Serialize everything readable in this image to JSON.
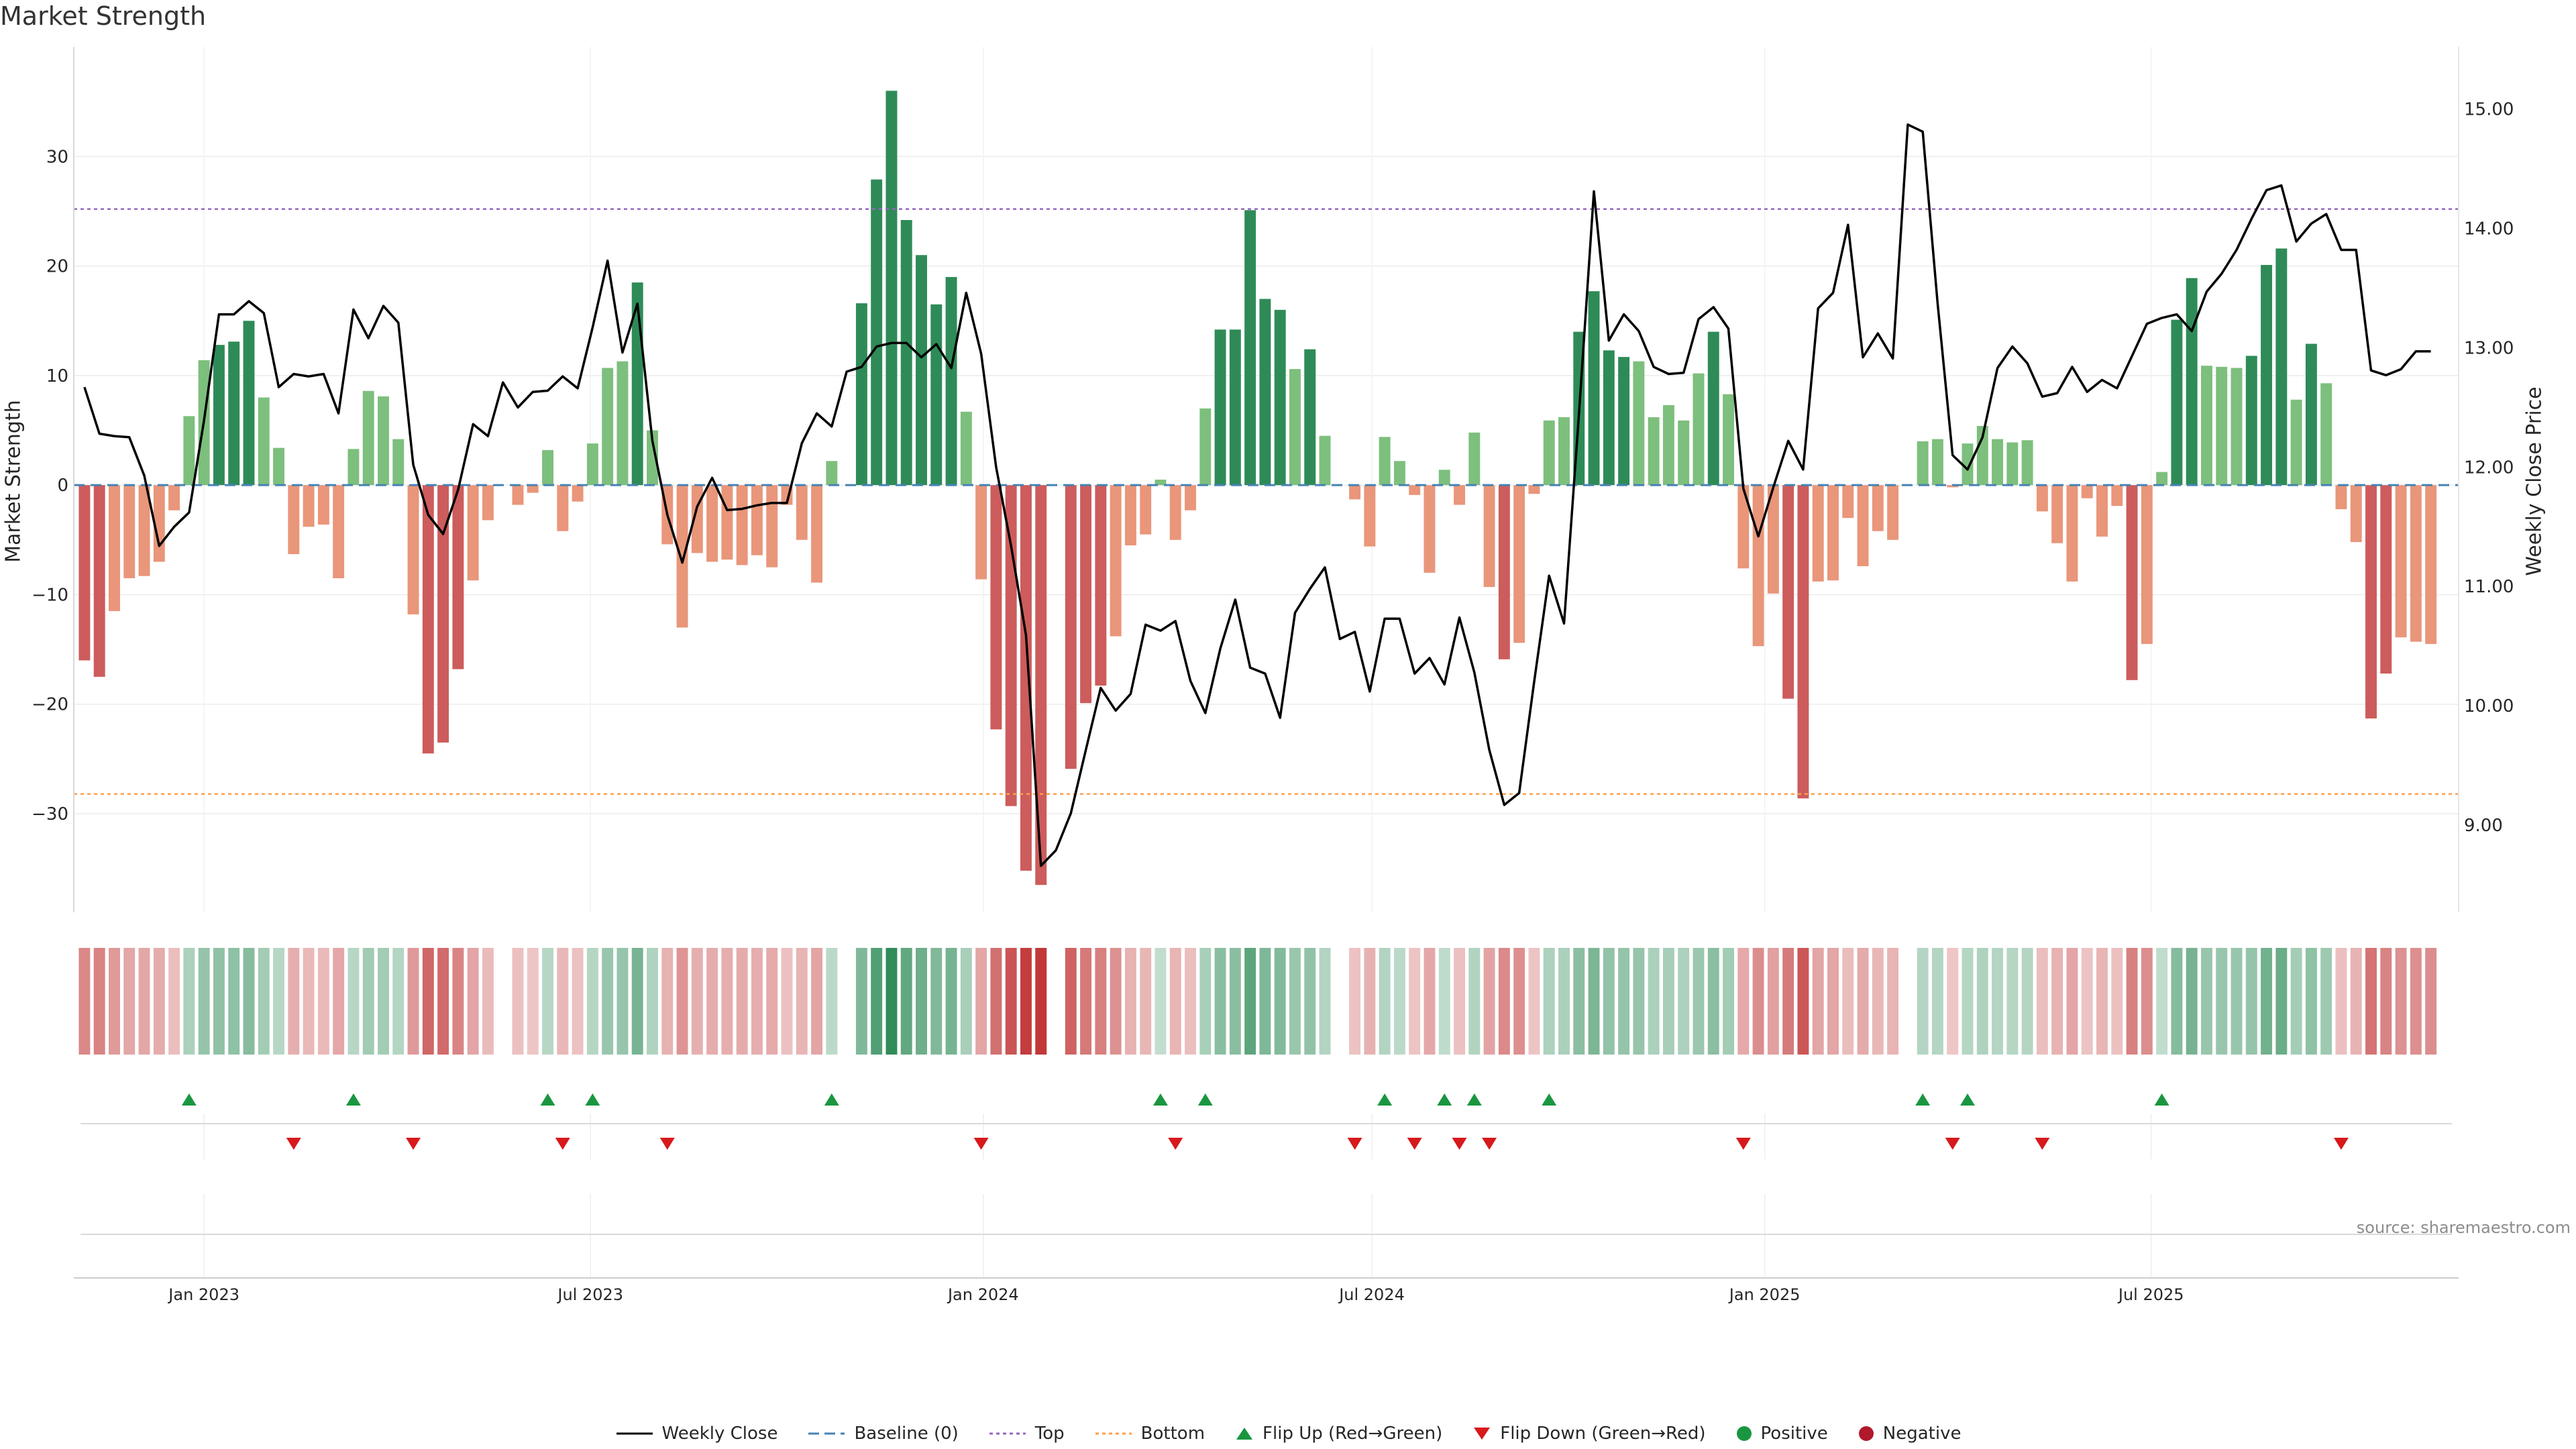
{
  "title": "Market Strength",
  "source": "source: sharemaestro.com",
  "colors": {
    "strong_green": "#2e8b57",
    "light_green": "#7dbf7d",
    "strong_red": "#cd5c5c",
    "light_red": "#e9967a",
    "price_line": "#000000",
    "baseline": "#4682b4",
    "top_line": "#9467bd",
    "bottom_line": "#ff9f4a",
    "flip_up": "#1a9641",
    "flip_down": "#d7191c"
  },
  "legend": [
    {
      "label": "Weekly Close",
      "icon": "solid-line-icon"
    },
    {
      "label": "Baseline (0)",
      "icon": "dashed-line-icon"
    },
    {
      "label": "Top",
      "icon": "dotted-line-icon"
    },
    {
      "label": "Bottom",
      "icon": "dotted-line-icon"
    },
    {
      "label": "Flip Up (Red→Green)",
      "icon": "triangle-up-icon"
    },
    {
      "label": "Flip Down (Green→Red)",
      "icon": "triangle-down-icon"
    },
    {
      "label": "Positive",
      "icon": "circle-icon"
    },
    {
      "label": "Negative",
      "icon": "circle-icon"
    }
  ],
  "chart_data": {
    "type": "bar",
    "title": "Market Strength",
    "ylabel": "Market Strength",
    "y2label": "Weekly Close Price",
    "ylim": [
      -39,
      40
    ],
    "y2lim": [
      8.27,
      15.52
    ],
    "yticks": [
      -30,
      -20,
      -10,
      0,
      10,
      20,
      30
    ],
    "yticklabels": [
      "−30",
      "−20",
      "−10",
      "0",
      "10",
      "20",
      "30"
    ],
    "y2ticks": [
      9,
      10,
      11,
      12,
      13,
      14,
      15
    ],
    "y2ticklabels": [
      "9.00",
      "10.00",
      "11.00",
      "12.00",
      "13.00",
      "14.00",
      "15.00"
    ],
    "xlim": [
      "2022-11-01",
      "2025-11-22"
    ],
    "xticks": [
      "2023-01-01",
      "2023-07-01",
      "2024-01-01",
      "2024-07-01",
      "2025-01-01",
      "2025-07-01"
    ],
    "xticklabels": [
      "Jan 2023",
      "Jul 2023",
      "Jan 2024",
      "Jul 2024",
      "Jan 2025",
      "Jul 2025"
    ],
    "start_week": "2022-11-06",
    "top_threshold": 25.2,
    "bottom_threshold": -28.2,
    "grid": true,
    "legend_position": "bottom-center",
    "series": [
      {
        "name": "Market Strength",
        "type": "bar",
        "values": [
          -16,
          -17.5,
          -11.5,
          -8.5,
          -8.3,
          -7,
          -2.3,
          6.3,
          11.4,
          12.8,
          13.1,
          15,
          8,
          3.4,
          -6.3,
          -3.8,
          -3.6,
          -8.5,
          3.3,
          8.6,
          8.1,
          4.2,
          -11.8,
          -24.5,
          -23.5,
          -16.8,
          -8.7,
          -3.2,
          0,
          -1.8,
          -0.7,
          3.2,
          -4.2,
          -1.5,
          3.8,
          10.7,
          11.3,
          18.5,
          5,
          -5.4,
          -13,
          -6.2,
          -7,
          -6.8,
          -7.3,
          -6.4,
          -7.5,
          -1.8,
          -5,
          -8.9,
          2.2,
          0,
          16.6,
          27.9,
          36,
          24.2,
          21,
          16.5,
          19,
          6.7,
          -8.6,
          -22.3,
          -29.3,
          -35.2,
          -36.5,
          0,
          -25.9,
          -19.9,
          -18.3,
          -13.8,
          -5.5,
          -4.5,
          0.5,
          -5,
          -2.3,
          7,
          14.2,
          14.2,
          25.1,
          17,
          16,
          10.6,
          12.4,
          4.5,
          0,
          -1.3,
          -5.6,
          4.4,
          2.2,
          -0.9,
          -8,
          1.4,
          -1.8,
          4.8,
          -9.3,
          -15.9,
          -14.4,
          -0.8,
          5.9,
          6.2,
          14,
          17.7,
          12.3,
          11.7,
          11.3,
          6.2,
          7.3,
          5.9,
          10.2,
          14,
          8.3,
          -7.6,
          -14.7,
          -9.9,
          -19.5,
          -28.6,
          -8.8,
          -8.7,
          -3,
          -7.4,
          -4.2,
          -5,
          0,
          4,
          4.2,
          -0.2,
          3.8,
          5.4,
          4.2,
          3.9,
          4.1,
          -2.4,
          -5.3,
          -8.8,
          -1.2,
          -4.7,
          -1.9,
          -17.8,
          -14.5,
          1.2,
          15.1,
          18.9,
          10.9,
          10.8,
          10.7,
          11.8,
          20.1,
          21.6,
          7.8,
          12.9,
          9.3,
          -2.2,
          -5.2,
          -21.3,
          -17.2,
          -13.9,
          -14.3,
          -14.5
        ]
      },
      {
        "name": "Weekly Close",
        "type": "line",
        "axis": "right",
        "values": [
          12.67,
          12.28,
          12.26,
          12.25,
          11.93,
          11.34,
          11.5,
          11.62,
          12.39,
          13.28,
          13.28,
          13.39,
          13.29,
          12.67,
          12.78,
          12.76,
          12.78,
          12.45,
          13.32,
          13.08,
          13.35,
          13.21,
          12.02,
          11.6,
          11.44,
          11.81,
          12.36,
          12.26,
          12.71,
          12.5,
          12.63,
          12.64,
          12.76,
          12.66,
          13.17,
          13.73,
          12.96,
          13.37,
          12.22,
          11.6,
          11.2,
          11.67,
          11.91,
          11.64,
          11.65,
          11.68,
          11.7,
          11.7,
          12.2,
          12.45,
          12.34,
          12.8,
          12.84,
          13.01,
          13.04,
          13.04,
          12.92,
          13.03,
          12.83,
          13.46,
          12.95,
          12.0,
          11.34,
          10.59,
          8.66,
          8.79,
          9.1,
          9.63,
          10.15,
          9.96,
          10.1,
          10.68,
          10.63,
          10.71,
          10.21,
          9.94,
          10.48,
          10.89,
          10.32,
          10.27,
          9.9,
          10.78,
          10.98,
          11.16,
          10.56,
          10.62,
          10.12,
          10.73,
          10.73,
          10.27,
          10.4,
          10.18,
          10.74,
          10.28,
          9.63,
          9.17,
          9.27,
          10.2,
          11.09,
          10.69,
          12.45,
          14.31,
          13.06,
          13.28,
          13.14,
          12.84,
          12.78,
          12.79,
          13.24,
          13.34,
          13.16,
          11.82,
          11.42,
          11.83,
          12.22,
          11.98,
          13.33,
          13.46,
          14.03,
          12.92,
          13.12,
          12.91,
          14.87,
          14.81,
          13.37,
          12.1,
          11.98,
          12.25,
          12.83,
          13.01,
          12.87,
          12.59,
          12.62,
          12.84,
          12.63,
          12.73,
          12.66,
          12.93,
          13.2,
          13.25,
          13.28,
          13.14,
          13.47,
          13.62,
          13.82,
          14.08,
          14.32,
          14.36,
          13.89,
          14.04,
          14.12,
          13.82,
          13.82,
          12.81,
          12.77,
          12.82,
          12.97,
          12.97
        ]
      }
    ]
  }
}
